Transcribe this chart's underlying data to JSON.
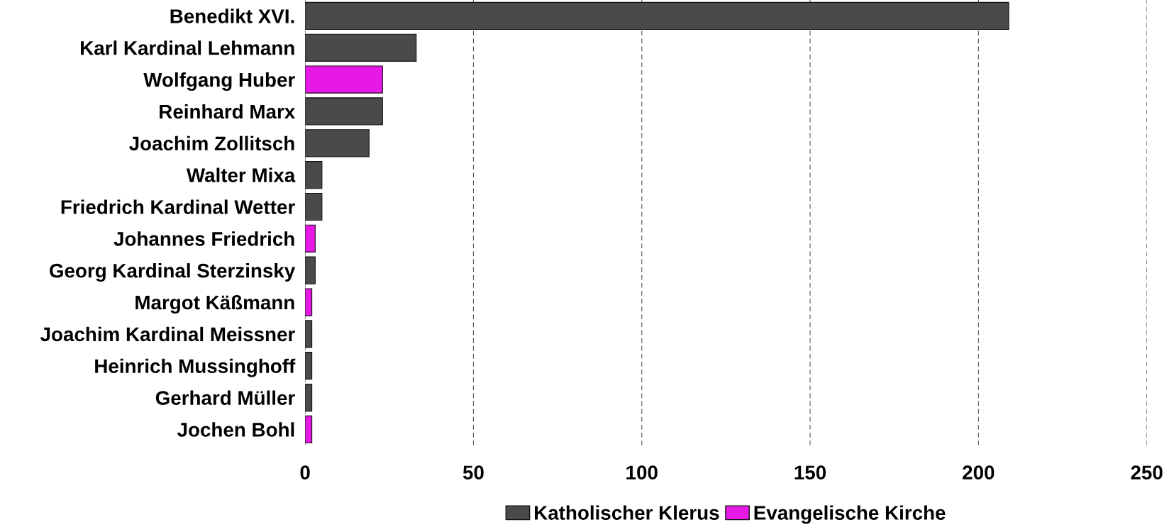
{
  "chart_data": {
    "type": "bar",
    "orientation": "horizontal",
    "categories": [
      "Benedikt XVI.",
      "Karl Kardinal Lehmann",
      "Wolfgang Huber",
      "Reinhard Marx",
      "Joachim Zollitsch",
      "Walter Mixa",
      "Friedrich Kardinal Wetter",
      "Johannes Friedrich",
      "Georg Kardinal Sterzinsky",
      "Margot Käßmann",
      "Joachim Kardinal Meissner",
      "Heinrich Mussinghoff",
      "Gerhard Müller",
      "Jochen Bohl"
    ],
    "series": [
      {
        "name": "Katholischer Klerus",
        "color": "#4a4a4a",
        "values": [
          209,
          33,
          null,
          23,
          19,
          5,
          5,
          null,
          3,
          null,
          2,
          2,
          2,
          null
        ]
      },
      {
        "name": "Evangelische Kirche",
        "color": "#e619e6",
        "values": [
          null,
          null,
          23,
          null,
          null,
          null,
          null,
          3,
          null,
          2,
          null,
          null,
          null,
          2
        ]
      }
    ],
    "xlim": [
      0,
      250
    ],
    "xticks": [
      0,
      50,
      100,
      150,
      200,
      250
    ],
    "grid": "x",
    "legend": "bottom"
  }
}
